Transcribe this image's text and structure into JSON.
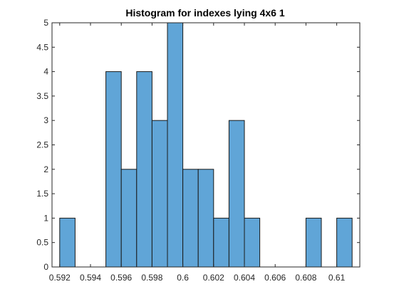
{
  "chart_data": {
    "type": "bar",
    "title": "Histogram for indexes lying 4x6 1",
    "xlabel": "",
    "ylabel": "",
    "xlim": [
      0.5915,
      0.6115
    ],
    "ylim": [
      0,
      5
    ],
    "bin_width": 0.001,
    "bins": [
      {
        "start": 0.592,
        "end": 0.593,
        "count": 1
      },
      {
        "start": 0.595,
        "end": 0.596,
        "count": 4
      },
      {
        "start": 0.596,
        "end": 0.597,
        "count": 2
      },
      {
        "start": 0.597,
        "end": 0.598,
        "count": 4
      },
      {
        "start": 0.598,
        "end": 0.599,
        "count": 3
      },
      {
        "start": 0.599,
        "end": 0.6,
        "count": 5
      },
      {
        "start": 0.6,
        "end": 0.601,
        "count": 2
      },
      {
        "start": 0.601,
        "end": 0.602,
        "count": 2
      },
      {
        "start": 0.602,
        "end": 0.603,
        "count": 1
      },
      {
        "start": 0.603,
        "end": 0.604,
        "count": 3
      },
      {
        "start": 0.604,
        "end": 0.605,
        "count": 1
      },
      {
        "start": 0.608,
        "end": 0.609,
        "count": 1
      },
      {
        "start": 0.61,
        "end": 0.611,
        "count": 1
      }
    ],
    "x_ticks": [
      0.592,
      0.594,
      0.596,
      0.598,
      0.6,
      0.602,
      0.604,
      0.606,
      0.608,
      0.61
    ],
    "x_tick_labels": [
      "0.592",
      "0.594",
      "0.596",
      "0.598",
      "0.6",
      "0.602",
      "0.604",
      "0.606",
      "0.608",
      "0.61"
    ],
    "y_ticks": [
      0,
      0.5,
      1,
      1.5,
      2,
      2.5,
      3,
      3.5,
      4,
      4.5,
      5
    ],
    "y_tick_labels": [
      "0",
      "0.5",
      "1",
      "1.5",
      "2",
      "2.5",
      "3",
      "3.5",
      "4",
      "4.5",
      "5"
    ],
    "grid": false,
    "legend": "none",
    "colors": {
      "bar_fill": "#60a5d7",
      "bar_edge": "#1a1a1a",
      "axis": "#262626"
    }
  }
}
